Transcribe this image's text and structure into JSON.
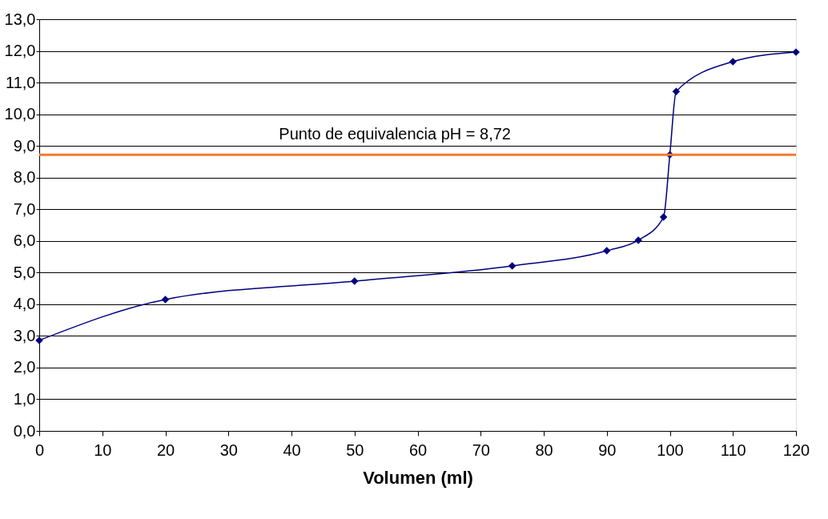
{
  "chart_data": {
    "type": "line",
    "xlabel": "Volumen (ml)",
    "x": [
      0,
      20,
      50,
      75,
      90,
      95,
      99,
      100,
      101,
      110,
      120
    ],
    "series": [
      {
        "color": "#00007f",
        "values": [
          2.86,
          4.15,
          4.73,
          5.21,
          5.69,
          6.02,
          6.75,
          8.72,
          10.72,
          11.66,
          11.96
        ]
      }
    ],
    "xlim": [
      0,
      120
    ],
    "xticks": [
      0,
      10,
      20,
      30,
      40,
      50,
      60,
      70,
      80,
      90,
      100,
      110,
      120
    ],
    "ylim": [
      0,
      13
    ],
    "yticks": [
      {
        "value": 0,
        "label": "0,0"
      },
      {
        "value": 1,
        "label": "1,0"
      },
      {
        "value": 2,
        "label": "2,0"
      },
      {
        "value": 3,
        "label": "3,0"
      },
      {
        "value": 4,
        "label": "4,0"
      },
      {
        "value": 5,
        "label": "5,0"
      },
      {
        "value": 6,
        "label": "6,0"
      },
      {
        "value": 7,
        "label": "7,0"
      },
      {
        "value": 8,
        "label": "8,0"
      },
      {
        "value": 9,
        "label": "9,0"
      },
      {
        "value": 10,
        "label": "10,0"
      },
      {
        "value": 11,
        "label": "11,0"
      },
      {
        "value": 12,
        "label": "12,0"
      },
      {
        "value": 13,
        "label": "13,0"
      }
    ],
    "ref_lines": [
      {
        "axis": "y",
        "value": 8.72,
        "label": "Punto de equivalencia    pH = 8,72",
        "color": "#ed7d31",
        "line_style": "solid"
      }
    ],
    "grid": "y",
    "marker": "diamond",
    "line_style": "solid"
  }
}
